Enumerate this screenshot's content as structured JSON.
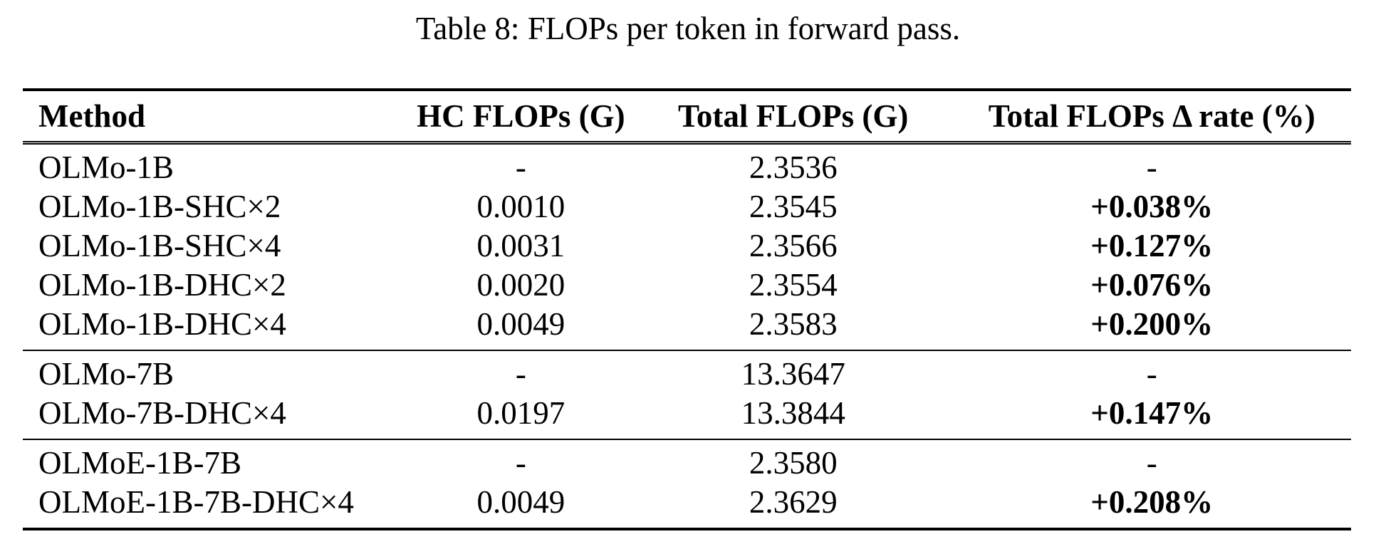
{
  "caption": "Table 8: FLOPs per token in forward pass.",
  "colors": {
    "text": "#000000",
    "background": "#ffffff",
    "rule": "#000000"
  },
  "columns": [
    "Method",
    "HC FLOPs (G)",
    "Total FLOPs (G)",
    "Total FLOPs Δ rate (%)"
  ],
  "groups": [
    {
      "rows": [
        {
          "method": "OLMo-1B",
          "hc_flops": "-",
          "total_flops": "2.3536",
          "delta_rate": "-"
        },
        {
          "method": "OLMo-1B-SHC×2",
          "hc_flops": "0.0010",
          "total_flops": "2.3545",
          "delta_rate": "+0.038%"
        },
        {
          "method": "OLMo-1B-SHC×4",
          "hc_flops": "0.0031",
          "total_flops": "2.3566",
          "delta_rate": "+0.127%"
        },
        {
          "method": "OLMo-1B-DHC×2",
          "hc_flops": "0.0020",
          "total_flops": "2.3554",
          "delta_rate": "+0.076%"
        },
        {
          "method": "OLMo-1B-DHC×4",
          "hc_flops": "0.0049",
          "total_flops": "2.3583",
          "delta_rate": "+0.200%"
        }
      ]
    },
    {
      "rows": [
        {
          "method": "OLMo-7B",
          "hc_flops": "-",
          "total_flops": "13.3647",
          "delta_rate": "-"
        },
        {
          "method": "OLMo-7B-DHC×4",
          "hc_flops": "0.0197",
          "total_flops": "13.3844",
          "delta_rate": "+0.147%"
        }
      ]
    },
    {
      "rows": [
        {
          "method": "OLMoE-1B-7B",
          "hc_flops": "-",
          "total_flops": "2.3580",
          "delta_rate": "-"
        },
        {
          "method": "OLMoE-1B-7B-DHC×4",
          "hc_flops": "0.0049",
          "total_flops": "2.3629",
          "delta_rate": "+0.208%"
        }
      ]
    }
  ],
  "chart_data": {
    "type": "table",
    "title": "Table 8: FLOPs per token in forward pass.",
    "columns": [
      "Method",
      "HC FLOPs (G)",
      "Total FLOPs (G)",
      "Total FLOPs Δ rate (%)"
    ],
    "rows": [
      [
        "OLMo-1B",
        null,
        2.3536,
        null
      ],
      [
        "OLMo-1B-SHC×2",
        0.001,
        2.3545,
        0.038
      ],
      [
        "OLMo-1B-SHC×4",
        0.0031,
        2.3566,
        0.127
      ],
      [
        "OLMo-1B-DHC×2",
        0.002,
        2.3554,
        0.076
      ],
      [
        "OLMo-1B-DHC×4",
        0.0049,
        2.3583,
        0.2
      ],
      [
        "OLMo-7B",
        null,
        13.3647,
        null
      ],
      [
        "OLMo-7B-DHC×4",
        0.0197,
        13.3844,
        0.147
      ],
      [
        "OLMoE-1B-7B",
        null,
        2.358,
        null
      ],
      [
        "OLMoE-1B-7B-DHC×4",
        0.0049,
        2.3629,
        0.208
      ]
    ]
  }
}
